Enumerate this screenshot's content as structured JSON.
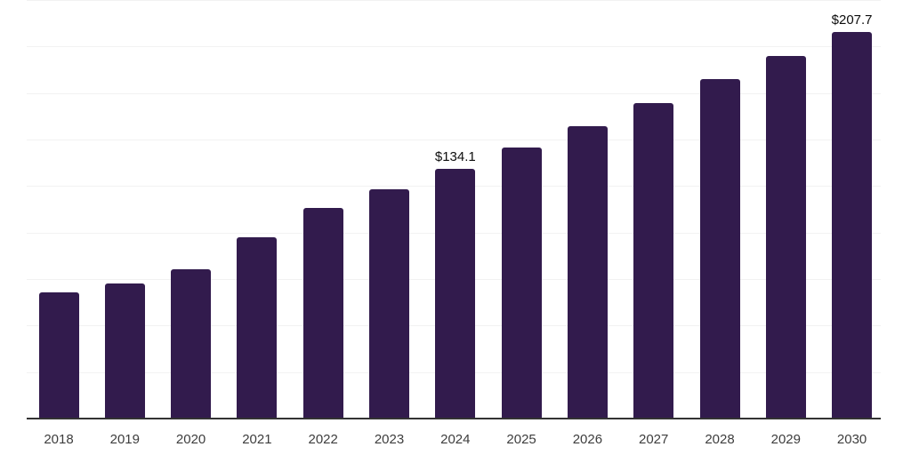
{
  "chart_data": {
    "type": "bar",
    "title": "",
    "xlabel": "",
    "ylabel": "",
    "legend": "none",
    "grid": "horizontal",
    "categories": [
      "2018",
      "2019",
      "2020",
      "2021",
      "2022",
      "2023",
      "2024",
      "2025",
      "2026",
      "2027",
      "2028",
      "2029",
      "2030"
    ],
    "values": [
      67.9,
      72.8,
      80.3,
      97.4,
      113.0,
      123.4,
      134.1,
      145.7,
      157.2,
      169.7,
      182.5,
      194.9,
      207.7
    ],
    "annotations": [
      {
        "category": "2024",
        "label": "$134.1"
      },
      {
        "category": "2030",
        "label": "$207.7"
      }
    ],
    "ylim": [
      0,
      225
    ],
    "gridline_step": 25,
    "colors": {
      "bar": "#321b4d",
      "axis_line": "#333333",
      "gridline": "#f2f2f2",
      "value_label": "#0d0d0d",
      "tick_label": "#3d3d3d",
      "background": "#ffffff"
    }
  }
}
